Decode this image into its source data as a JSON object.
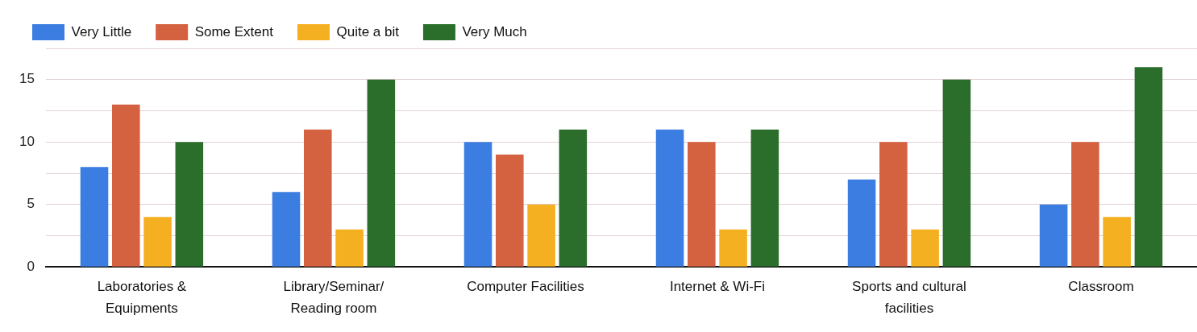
{
  "chart_data": {
    "type": "bar",
    "categories": [
      "Laboratories & Equipments",
      "Library/Seminar/Reading room",
      "Computer Facilities",
      "Internet & Wi-Fi",
      "Sports and cultural facilities",
      "Classroom"
    ],
    "series": [
      {
        "name": "Very Little",
        "color": "#3b7de0",
        "values": [
          8,
          6,
          10,
          11,
          7,
          5
        ]
      },
      {
        "name": "Some Extent",
        "color": "#d4613f",
        "values": [
          13,
          11,
          9,
          10,
          10,
          10
        ]
      },
      {
        "name": "Quite a bit",
        "color": "#f5b021",
        "values": [
          4,
          3,
          5,
          3,
          3,
          4
        ]
      },
      {
        "name": "Very Much",
        "color": "#2b6e2b",
        "values": [
          10,
          15,
          11,
          11,
          15,
          16
        ]
      }
    ],
    "ylim": [
      0,
      17.5
    ],
    "yticks": [
      0,
      {
        "value": 2.5,
        "label": null
      },
      5,
      {
        "value": 7.5,
        "label": null
      },
      10,
      {
        "value": 12.5,
        "label": null
      },
      15,
      {
        "value": 17.5,
        "label": null
      }
    ],
    "grid": "y",
    "legend": "top left"
  }
}
